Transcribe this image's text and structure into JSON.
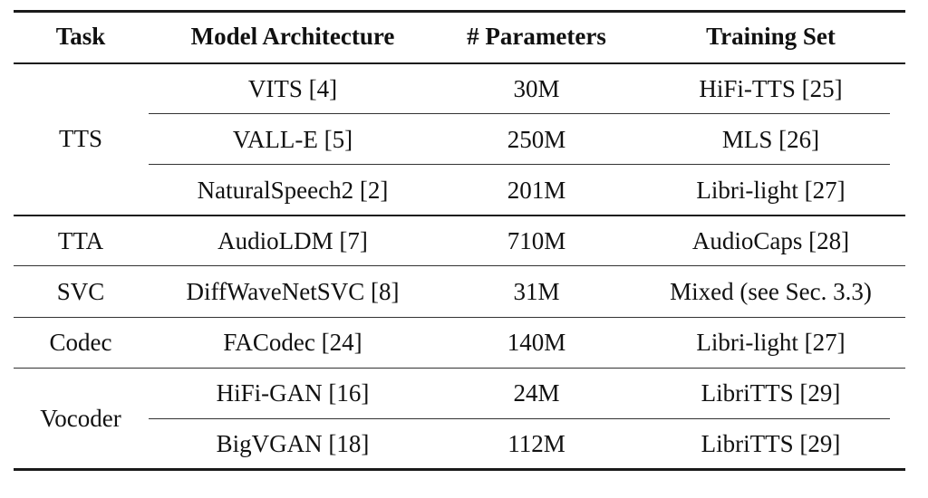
{
  "table": {
    "headers": [
      "Task",
      "Model Architecture",
      "# Parameters",
      "Training Set"
    ],
    "groups": [
      {
        "task": "TTS",
        "rows": [
          {
            "model": "VITS [4]",
            "params": "30M",
            "training_set": "HiFi-TTS [25]"
          },
          {
            "model": "VALL-E [5]",
            "params": "250M",
            "training_set": "MLS [26]"
          },
          {
            "model": "NaturalSpeech2 [2]",
            "params": "201M",
            "training_set": "Libri-light [27]"
          }
        ]
      },
      {
        "task": "TTA",
        "rows": [
          {
            "model": "AudioLDM [7]",
            "params": "710M",
            "training_set": "AudioCaps [28]"
          }
        ]
      },
      {
        "task": "SVC",
        "rows": [
          {
            "model": "DiffWaveNetSVC [8]",
            "params": "31M",
            "training_set": "Mixed (see Sec. 3.3)"
          }
        ]
      },
      {
        "task": "Codec",
        "rows": [
          {
            "model": "FACodec [24]",
            "params": "140M",
            "training_set": "Libri-light [27]"
          }
        ]
      },
      {
        "task": "Vocoder",
        "rows": [
          {
            "model": "HiFi-GAN [16]",
            "params": "24M",
            "training_set": "LibriTTS [29]"
          },
          {
            "model": "BigVGAN [18]",
            "params": "112M",
            "training_set": "LibriTTS [29]"
          }
        ]
      }
    ]
  }
}
